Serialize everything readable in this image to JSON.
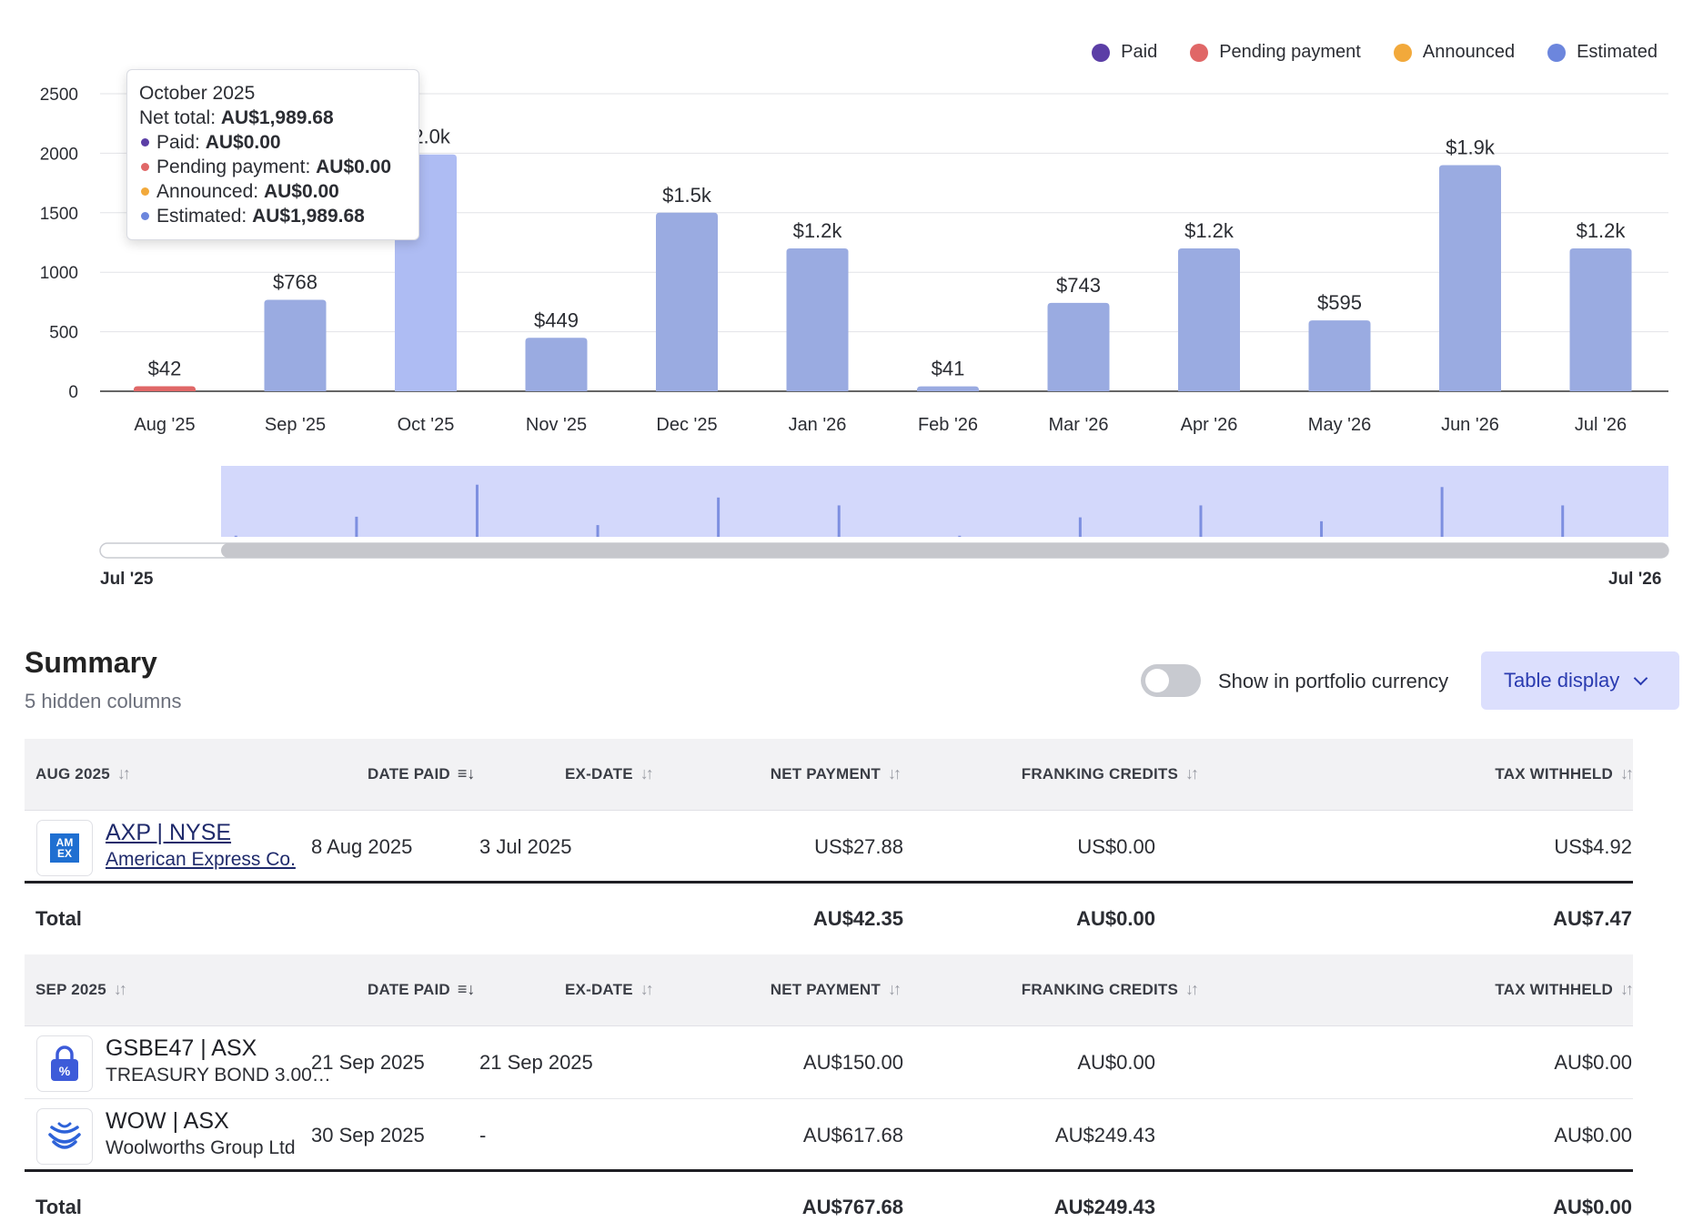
{
  "legend": [
    {
      "label": "Paid",
      "color": "#5b3ea6"
    },
    {
      "label": "Pending payment",
      "color": "#e06767"
    },
    {
      "label": "Announced",
      "color": "#f2a93b"
    },
    {
      "label": "Estimated",
      "color": "#6c86dd"
    }
  ],
  "chart_data": {
    "type": "bar",
    "categories": [
      "Aug '25",
      "Sep '25",
      "Oct '25",
      "Nov '25",
      "Dec '25",
      "Jan '26",
      "Feb '26",
      "Mar '26",
      "Apr '26",
      "May '26",
      "Jun '26",
      "Jul '26"
    ],
    "values": [
      42,
      768,
      1989.68,
      449,
      1500,
      1200,
      41,
      743,
      1200,
      595,
      1900,
      1200
    ],
    "data_labels": [
      "$42",
      "$768",
      "$2.0k",
      "$449",
      "$1.5k",
      "$1.2k",
      "$41",
      "$743",
      "$1.2k",
      "$595",
      "$1.9k",
      "$1.2k"
    ],
    "bar_status": [
      "Pending payment",
      "Estimated",
      "Estimated",
      "Estimated",
      "Estimated",
      "Estimated",
      "Estimated",
      "Estimated",
      "Estimated",
      "Estimated",
      "Estimated",
      "Estimated"
    ],
    "highlighted_index": 2,
    "y_ticks": [
      0,
      500,
      1000,
      1500,
      2000,
      2500
    ],
    "ylim": [
      0,
      2500
    ],
    "grid": true,
    "legend_position": "top-right",
    "colors": {
      "estimated": "#9aabe1",
      "estimated_hover": "#aebcf3",
      "pending": "#e06767"
    }
  },
  "tooltip": {
    "title": "October 2025",
    "net_label": "Net total:",
    "net_value": "AU$1,989.68",
    "rows": [
      {
        "label": "Paid:",
        "value": "AU$0.00",
        "color": "#5b3ea6"
      },
      {
        "label": "Pending payment:",
        "value": "AU$0.00",
        "color": "#e06767"
      },
      {
        "label": "Announced:",
        "value": "AU$0.00",
        "color": "#f2a93b"
      },
      {
        "label": "Estimated:",
        "value": "AU$1,989.68",
        "color": "#6c86dd"
      }
    ]
  },
  "navigator": {
    "start_label": "Jul '25",
    "end_label": "Jul '26"
  },
  "summary": {
    "title": "Summary",
    "hidden_columns": "5 hidden columns",
    "toggle_label": "Show in portfolio currency",
    "toggle_on": false,
    "table_display_label": "Table display"
  },
  "columns": {
    "date_paid": "DATE PAID",
    "ex_date": "EX-DATE",
    "net_payment": "NET PAYMENT",
    "franking_credits": "FRANKING CREDITS",
    "tax_withheld": "TAX WITHHELD"
  },
  "groups": [
    {
      "month": "AUG 2025",
      "rows": [
        {
          "symbol": "AXP | NYSE",
          "name": "American Express Co.",
          "linked": true,
          "logo": "amex-logo-icon",
          "date_paid": "8 Aug 2025",
          "ex_date": "3 Jul 2025",
          "net_payment": "US$27.88",
          "franking_credits": "US$0.00",
          "tax_withheld": "US$4.92"
        }
      ],
      "total_label": "Total",
      "total": {
        "net_payment": "AU$42.35",
        "franking_credits": "AU$0.00",
        "tax_withheld": "AU$7.47"
      }
    },
    {
      "month": "SEP 2025",
      "rows": [
        {
          "symbol": "GSBE47 | ASX",
          "name": "TREASURY BOND 3.00…",
          "linked": false,
          "logo": "bond-lock-icon",
          "date_paid": "21 Sep 2025",
          "ex_date": "21 Sep 2025",
          "net_payment": "AU$150.00",
          "franking_credits": "AU$0.00",
          "tax_withheld": "AU$0.00"
        },
        {
          "symbol": "WOW | ASX",
          "name": "Woolworths Group Ltd",
          "linked": false,
          "logo": "woolworths-logo-icon",
          "date_paid": "30 Sep 2025",
          "ex_date": "-",
          "net_payment": "AU$617.68",
          "franking_credits": "AU$249.43",
          "tax_withheld": "AU$0.00"
        }
      ],
      "total_label": "Total",
      "total": {
        "net_payment": "AU$767.68",
        "franking_credits": "AU$249.43",
        "tax_withheld": "AU$0.00"
      }
    }
  ]
}
